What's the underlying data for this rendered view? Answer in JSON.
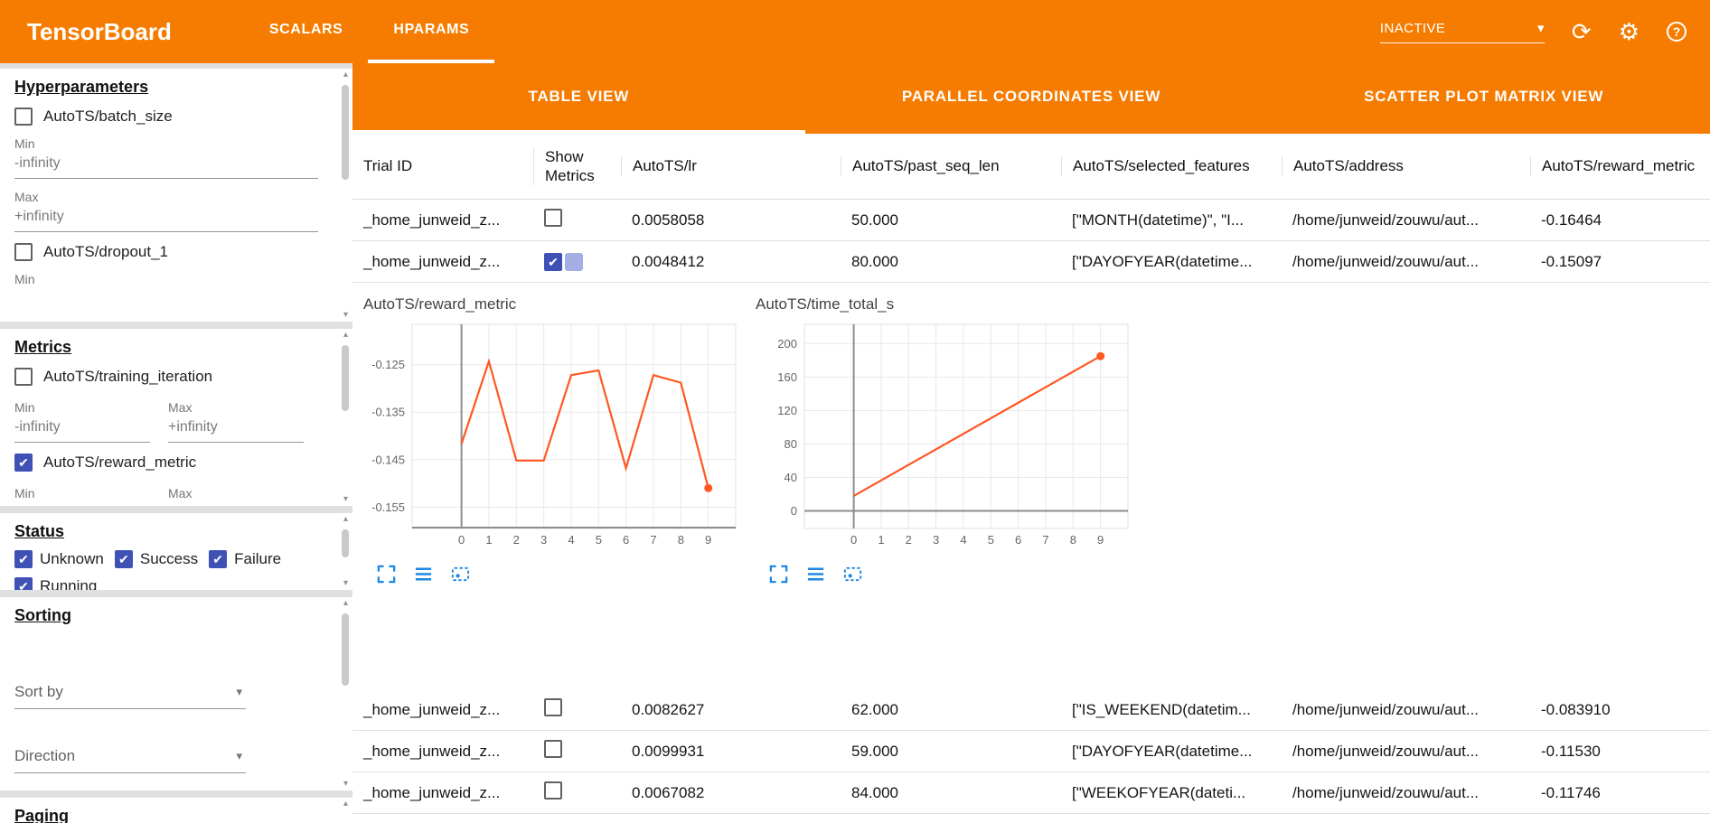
{
  "colors": {
    "primary_orange": "#f57c00",
    "checkbox_blue": "#3f51b5",
    "chart_line": "#ff5722",
    "tool_icon_blue": "#1e88e5"
  },
  "icons": {
    "caret_down": "▾",
    "refresh": "⟳",
    "settings": "⚙",
    "help": "?",
    "scroll_up": "▴",
    "scroll_down": "▾"
  },
  "topbar": {
    "title": "TensorBoard",
    "tabs": [
      {
        "label": "SCALARS",
        "active": false
      },
      {
        "label": "HPARAMS",
        "active": true
      }
    ],
    "run_selector": "INACTIVE"
  },
  "sidebar": {
    "hyperparameters": {
      "title": "Hyperparameters",
      "min_label": "Min",
      "max_label": "Max",
      "items": [
        {
          "label": "AutoTS/batch_size",
          "checked": false,
          "min": "-infinity",
          "max": "+infinity"
        },
        {
          "label": "AutoTS/dropout_1",
          "checked": false
        }
      ]
    },
    "metrics": {
      "title": "Metrics",
      "min_label": "Min",
      "max_label": "Max",
      "items": [
        {
          "label": "AutoTS/training_iteration",
          "checked": false,
          "min": "-infinity",
          "max": "+infinity"
        },
        {
          "label": "AutoTS/reward_metric",
          "checked": true
        }
      ]
    },
    "status": {
      "title": "Status",
      "items": [
        {
          "label": "Unknown",
          "checked": true
        },
        {
          "label": "Success",
          "checked": true
        },
        {
          "label": "Failure",
          "checked": true
        },
        {
          "label": "Running",
          "checked": true
        }
      ]
    },
    "sorting": {
      "title": "Sorting",
      "sort_by": "Sort by",
      "direction": "Direction"
    },
    "paging": {
      "title": "Paging"
    }
  },
  "main": {
    "view_tabs": [
      {
        "label": "TABLE VIEW",
        "active": true
      },
      {
        "label": "PARALLEL COORDINATES VIEW",
        "active": false
      },
      {
        "label": "SCATTER PLOT MATRIX VIEW",
        "active": false
      }
    ],
    "table": {
      "columns": [
        "Trial ID",
        "Show Metrics",
        "AutoTS/lr",
        "AutoTS/past_seq_len",
        "AutoTS/selected_features",
        "AutoTS/address",
        "AutoTS/reward_metric"
      ],
      "rows": [
        {
          "trial_id": "_home_junweid_z...",
          "show_metrics": false,
          "ripple": false,
          "lr": "0.0058058",
          "past_seq_len": "50.000",
          "selected_features": "[\"MONTH(datetime)\", \"I...",
          "address": "/home/junweid/zouwu/aut...",
          "reward_metric": "-0.16464"
        },
        {
          "trial_id": "_home_junweid_z...",
          "show_metrics": true,
          "ripple": true,
          "lr": "0.0048412",
          "past_seq_len": "80.000",
          "selected_features": "[\"DAYOFYEAR(datetime...",
          "address": "/home/junweid/zouwu/aut...",
          "reward_metric": "-0.15097"
        },
        {
          "trial_id": "_home_junweid_z...",
          "show_metrics": false,
          "ripple": false,
          "lr": "0.0082627",
          "past_seq_len": "62.000",
          "selected_features": "[\"IS_WEEKEND(datetim...",
          "address": "/home/junweid/zouwu/aut...",
          "reward_metric": "-0.083910"
        },
        {
          "trial_id": "_home_junweid_z...",
          "show_metrics": false,
          "ripple": false,
          "lr": "0.0099931",
          "past_seq_len": "59.000",
          "selected_features": "[\"DAYOFYEAR(datetime...",
          "address": "/home/junweid/zouwu/aut...",
          "reward_metric": "-0.11530"
        },
        {
          "trial_id": "_home_junweid_z...",
          "show_metrics": false,
          "ripple": false,
          "lr": "0.0067082",
          "past_seq_len": "84.000",
          "selected_features": "[\"WEEKOFYEAR(dateti...",
          "address": "/home/junweid/zouwu/aut...",
          "reward_metric": "-0.11746"
        }
      ]
    }
  },
  "chart_data": [
    {
      "type": "line",
      "title": "AutoTS/reward_metric",
      "x": [
        0,
        1,
        2,
        3,
        4,
        5,
        6,
        7,
        8,
        9
      ],
      "y": [
        -0.1417,
        -0.1243,
        -0.1452,
        -0.1452,
        -0.1272,
        -0.1262,
        -0.1468,
        -0.1272,
        -0.1288,
        -0.151
      ],
      "xlim": [
        -1.8,
        10.0
      ],
      "ylim": [
        -0.1595,
        -0.1165
      ],
      "xticks": [
        0,
        1,
        2,
        3,
        4,
        5,
        6,
        7,
        8,
        9
      ],
      "yticks": [
        -0.125,
        -0.135,
        -0.145,
        -0.155
      ],
      "xlabel": "",
      "ylabel": "",
      "grid": true,
      "line_color": "#ff5722",
      "end_marker": true
    },
    {
      "type": "line",
      "title": "AutoTS/time_total_s",
      "x": [
        0,
        9
      ],
      "y": [
        18,
        185
      ],
      "xlim": [
        -1.8,
        10.0
      ],
      "ylim": [
        -21,
        223
      ],
      "xticks": [
        0,
        1,
        2,
        3,
        4,
        5,
        6,
        7,
        8,
        9
      ],
      "yticks": [
        0,
        40,
        80,
        120,
        160,
        200
      ],
      "xlabel": "",
      "ylabel": "",
      "grid": true,
      "line_color": "#ff5722",
      "end_marker": true
    }
  ]
}
